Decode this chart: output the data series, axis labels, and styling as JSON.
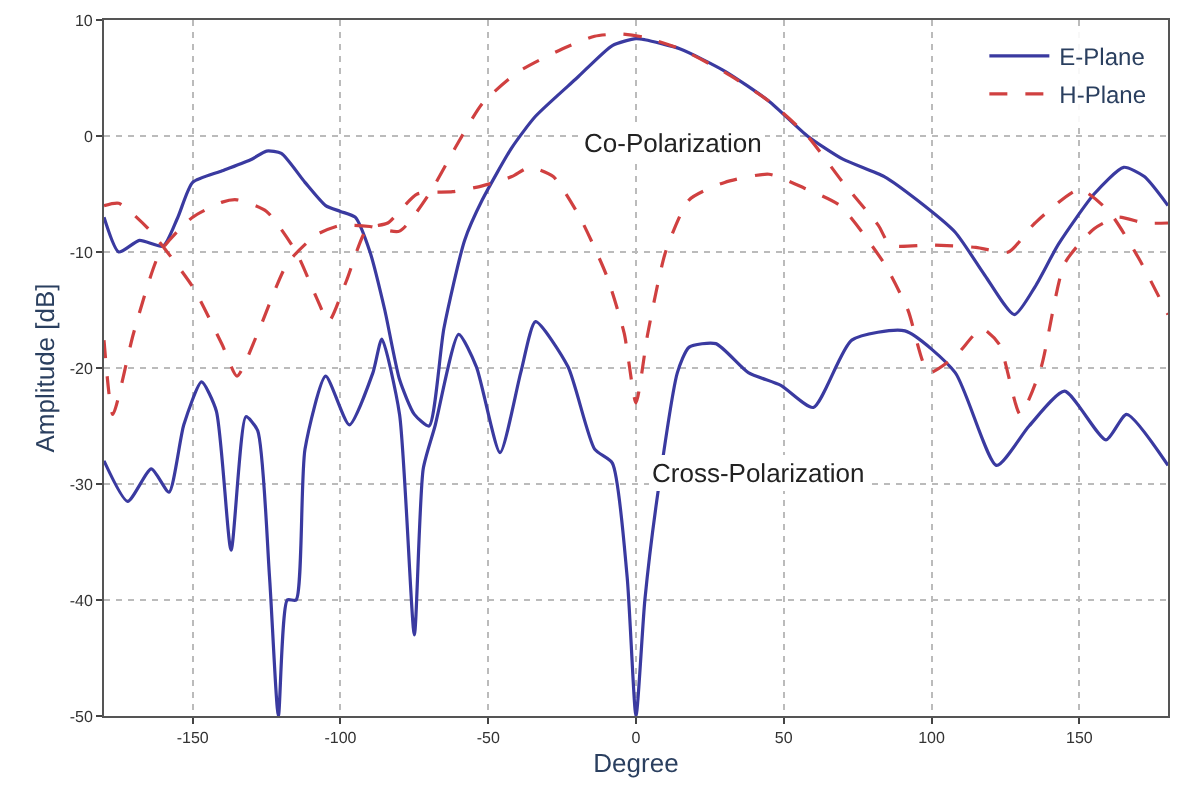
{
  "chart_data": {
    "type": "line",
    "xlabel": "Degree",
    "ylabel": "Amplitude [dB]",
    "xlim": [
      -180,
      180
    ],
    "xticks": [
      -150,
      -100,
      -50,
      0,
      50,
      100,
      150
    ],
    "ylim": [
      -50,
      10
    ],
    "yticks": [
      -50,
      -40,
      -30,
      -20,
      -10,
      0,
      10
    ],
    "grid": true,
    "legend": "top right",
    "marker": "none",
    "annotations": [
      "Co-Polarization",
      "Cross-Polarization"
    ],
    "series": [
      {
        "name": "E-Plane",
        "color": "#3a3aa0",
        "line_style": "solid",
        "x": [
          -180,
          -175,
          -168,
          -160,
          -155,
          -150,
          -140,
          -130,
          -125,
          -120,
          -112,
          -105,
          -100,
          -95,
          -90,
          -85,
          -80,
          -75,
          -70,
          -65,
          -58,
          -52,
          -42,
          -34,
          -20,
          -8,
          0,
          3,
          15,
          30,
          45,
          58,
          70,
          84,
          95,
          108,
          118,
          128,
          135,
          143,
          155,
          165,
          172,
          180
        ],
        "values": [
          -7,
          -10,
          -9,
          -9.5,
          -7,
          -4,
          -3,
          -2,
          -1.3,
          -1.5,
          -4,
          -6,
          -6.5,
          -7,
          -10,
          -15,
          -21,
          -24,
          -25,
          -16.6,
          -9,
          -5.5,
          -1,
          1.7,
          5,
          7.8,
          8.4,
          8.3,
          7.5,
          5.6,
          3,
          0,
          -2,
          -3.5,
          -5.5,
          -8.3,
          -12,
          -15.4,
          -13,
          -9.3,
          -5,
          -2.7,
          -3.5,
          -6
        ]
      },
      {
        "color": "#3a3aa0",
        "line_style": "solid",
        "x": [
          -180,
          -172,
          -164,
          -158,
          -153,
          -147,
          -142,
          -137,
          -132,
          -128,
          -124,
          -121,
          -118,
          -115,
          -112,
          -105,
          -97,
          -89,
          -86,
          -80,
          -75,
          -72,
          -68,
          -60,
          -54,
          -46,
          -39,
          -34,
          -23,
          -14,
          -8,
          -3,
          0,
          3,
          7,
          14,
          18,
          27,
          38,
          49,
          60,
          73,
          91,
          108,
          122,
          133,
          145,
          159,
          166,
          180
        ],
        "values": [
          -28,
          -31.5,
          -28.7,
          -30.7,
          -24.9,
          -21.2,
          -23.7,
          -35.7,
          -24.2,
          -25.4,
          -38,
          -50,
          -40,
          -40,
          -27,
          -20.7,
          -24.9,
          -20.4,
          -17.5,
          -24,
          -43,
          -28.7,
          -25,
          -17.1,
          -19.9,
          -27.3,
          -20.4,
          -16,
          -19.9,
          -27,
          -28.2,
          -38,
          -50,
          -40,
          -31.5,
          -20.4,
          -18.2,
          -17.9,
          -20.4,
          -21.5,
          -23.4,
          -17.6,
          -16.8,
          -20.4,
          -28.4,
          -25,
          -22,
          -26.2,
          -24,
          -28.4
        ]
      },
      {
        "name": "H-Plane",
        "color": "#d04040",
        "line_style": "dashed",
        "x": [
          -180,
          -175,
          -165,
          -150,
          -140,
          -135,
          -128,
          -118,
          -108,
          -100,
          -90,
          -80,
          -70,
          -60,
          -52,
          -40,
          -25,
          -14,
          -5,
          3,
          15,
          30,
          45,
          58,
          70,
          82,
          86,
          100,
          115,
          126,
          135,
          150,
          160,
          170,
          180
        ],
        "values": [
          -6,
          -5.8,
          -8,
          -13,
          -18,
          -20.7,
          -17,
          -11,
          -8.5,
          -7.7,
          -7.8,
          -8.2,
          -5,
          -0.5,
          2.8,
          5.5,
          7.5,
          8.6,
          8.8,
          8.5,
          7.5,
          5.5,
          3,
          0,
          -4,
          -7.7,
          -9.4,
          -9.4,
          -9.6,
          -10,
          -7.5,
          -4.6,
          -6.5,
          -10.5,
          -15.4
        ]
      },
      {
        "color": "#d04040",
        "line_style": "dashed",
        "x": [
          -180,
          -177,
          -170,
          -161,
          -150,
          -140,
          -135,
          -125,
          -115,
          -108,
          -104,
          -98,
          -91,
          -84,
          -74,
          -62,
          -52,
          -42,
          -36,
          -28,
          -19,
          -10,
          -4,
          0,
          4,
          10,
          18,
          30,
          45,
          57,
          69,
          84,
          92,
          99,
          108,
          117,
          123,
          130,
          137,
          145,
          155,
          163,
          172,
          180
        ],
        "values": [
          -17.6,
          -24,
          -17,
          -10,
          -7,
          -5.7,
          -5.5,
          -6.5,
          -10,
          -14,
          -16,
          -12.5,
          -8,
          -7.5,
          -5,
          -4.8,
          -4.3,
          -3.5,
          -2.7,
          -3.5,
          -7,
          -12,
          -17,
          -23,
          -17,
          -10,
          -5.5,
          -4,
          -3.3,
          -4.5,
          -6,
          -11,
          -15,
          -20.4,
          -19,
          -16.6,
          -18,
          -24,
          -20,
          -11,
          -8,
          -7,
          -7.5,
          -7.5
        ]
      }
    ]
  }
}
